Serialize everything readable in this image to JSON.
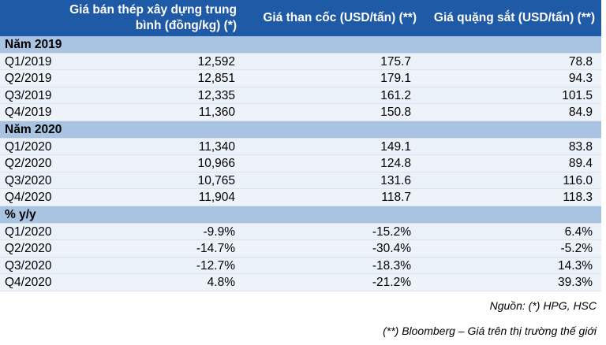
{
  "header": {
    "col1": "Giá bán thép xây dựng trung bình (đồng/kg) (*)",
    "col2": "Giá than cốc (USD/tấn) (**)",
    "col3": "Giá quặng sắt (USD/tấn) (**)"
  },
  "sections": [
    {
      "title": "Năm 2019",
      "rows": [
        [
          "Q1/2019",
          "12,592",
          "175.7",
          "78.8"
        ],
        [
          "Q2/2019",
          "12,851",
          "179.1",
          "94.3"
        ],
        [
          "Q3/2019",
          "12,335",
          "161.2",
          "101.5"
        ],
        [
          "Q4/2019",
          "11,360",
          "150.8",
          "84.9"
        ]
      ]
    },
    {
      "title": "Năm 2020",
      "rows": [
        [
          "Q1/2020",
          "11,340",
          "149.1",
          "83.8"
        ],
        [
          "Q2/2020",
          "10,966",
          "124.8",
          "89.4"
        ],
        [
          "Q3/2020",
          "10,765",
          "131.6",
          "116.0"
        ],
        [
          "Q4/2020",
          "11,904",
          "118.7",
          "118.3"
        ]
      ]
    },
    {
      "title": "% y/y",
      "rows": [
        [
          "Q1/2020",
          "-9.9%",
          "-15.2%",
          "6.4%"
        ],
        [
          "Q2/2020",
          "-14.7%",
          "-30.4%",
          "-5.2%"
        ],
        [
          "Q3/2020",
          "-12.7%",
          "-18.3%",
          "14.3%"
        ],
        [
          "Q4/2020",
          "4.8%",
          "-21.2%",
          "39.3%"
        ]
      ]
    }
  ],
  "notes": {
    "source": "Nguồn: (*) HPG, HSC",
    "bloomberg": "(**) Bloomberg – Giá trên thị trường thế giới"
  }
}
